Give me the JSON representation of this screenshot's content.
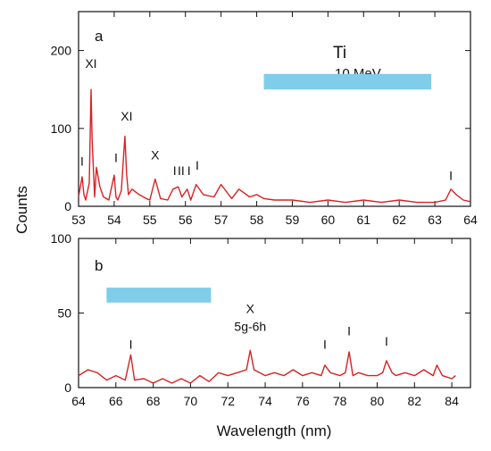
{
  "figure": {
    "ylabel": "Counts",
    "xlabel": "Wavelength (nm)"
  },
  "chart_data": [
    {
      "type": "line",
      "panel_label": "a",
      "title": "Ti",
      "subtitle": "10 MeV",
      "xlabel": "Wavelength (nm)",
      "ylabel": "Counts",
      "xlim": [
        53,
        64
      ],
      "ylim": [
        0,
        250
      ],
      "xticks": [
        53,
        54,
        55,
        56,
        57,
        58,
        59,
        60,
        61,
        62,
        63,
        64
      ],
      "yticks": [
        0,
        100,
        200
      ],
      "line_color": "#d62222",
      "band": {
        "x": [
          58.2,
          62.9
        ],
        "y": [
          150,
          170
        ],
        "color": "#7fcde8"
      },
      "series": [
        {
          "x": [
            53.0,
            53.1,
            53.15,
            53.2,
            53.3,
            53.35,
            53.38,
            53.45,
            53.5,
            53.6,
            53.7,
            53.85,
            54.0,
            54.05,
            54.1,
            54.2,
            54.3,
            54.35,
            54.4,
            54.5,
            54.7,
            54.9,
            55.0,
            55.15,
            55.3,
            55.5,
            55.65,
            55.8,
            55.9,
            56.05,
            56.15,
            56.3,
            56.5,
            56.8,
            57.0,
            57.3,
            57.5,
            57.8,
            58.0,
            58.2,
            58.5,
            59.0,
            59.5,
            60.0,
            60.5,
            61.0,
            61.5,
            62.0,
            62.5,
            63.0,
            63.3,
            63.45,
            63.6,
            63.8,
            64.0
          ],
          "y": [
            12,
            38,
            15,
            8,
            30,
            150,
            85,
            12,
            50,
            25,
            12,
            8,
            40,
            12,
            8,
            20,
            90,
            40,
            15,
            22,
            15,
            10,
            8,
            35,
            10,
            8,
            22,
            25,
            12,
            22,
            8,
            28,
            15,
            12,
            28,
            10,
            22,
            12,
            15,
            10,
            8,
            8,
            5,
            8,
            5,
            8,
            5,
            8,
            5,
            5,
            8,
            22,
            15,
            8,
            6
          ]
        }
      ],
      "annotations": [
        {
          "text": "XI",
          "x": 53.35,
          "y": 178
        },
        {
          "text": "XI",
          "x": 54.35,
          "y": 110
        },
        {
          "text": "X",
          "x": 55.15,
          "y": 60
        },
        {
          "text": "I",
          "x": 53.1,
          "y": 52
        },
        {
          "text": "I",
          "x": 54.05,
          "y": 57
        },
        {
          "text": "I",
          "x": 55.7,
          "y": 40
        },
        {
          "text": "II",
          "x": 55.88,
          "y": 40
        },
        {
          "text": "I",
          "x": 56.1,
          "y": 40
        },
        {
          "text": "I",
          "x": 56.33,
          "y": 47
        },
        {
          "text": "I",
          "x": 63.45,
          "y": 34
        }
      ]
    },
    {
      "type": "line",
      "panel_label": "b",
      "xlabel": "Wavelength (nm)",
      "ylabel": "Counts",
      "xlim": [
        64,
        85
      ],
      "ylim": [
        0,
        100
      ],
      "xticks": [
        64,
        66,
        68,
        70,
        72,
        74,
        76,
        78,
        80,
        82,
        84
      ],
      "yticks": [
        0,
        50,
        100
      ],
      "line_color": "#d62222",
      "band": {
        "x": [
          65.5,
          71.1
        ],
        "y": [
          57,
          67
        ],
        "color": "#7fcde8"
      },
      "series": [
        {
          "x": [
            64.0,
            64.5,
            65.0,
            65.5,
            66.0,
            66.5,
            66.8,
            67.0,
            67.5,
            68.0,
            68.5,
            69.0,
            69.5,
            70.0,
            70.5,
            71.0,
            71.5,
            72.0,
            72.5,
            73.0,
            73.2,
            73.4,
            73.7,
            74.0,
            74.5,
            75.0,
            75.5,
            76.0,
            76.5,
            77.0,
            77.2,
            77.5,
            78.0,
            78.3,
            78.5,
            78.7,
            79.0,
            79.5,
            80.0,
            80.3,
            80.5,
            80.8,
            81.0,
            81.5,
            82.0,
            82.5,
            83.0,
            83.2,
            83.5,
            84.0,
            84.2
          ],
          "y": [
            8,
            12,
            10,
            5,
            8,
            5,
            22,
            5,
            6,
            3,
            6,
            3,
            6,
            3,
            8,
            4,
            10,
            8,
            10,
            12,
            25,
            12,
            10,
            8,
            10,
            8,
            12,
            8,
            10,
            8,
            15,
            10,
            8,
            10,
            24,
            8,
            10,
            8,
            8,
            10,
            18,
            10,
            8,
            10,
            8,
            12,
            8,
            15,
            8,
            6,
            8
          ]
        }
      ],
      "annotations": [
        {
          "text": "X",
          "x": 73.2,
          "y": 50
        },
        {
          "text": "5g-6h",
          "x": 73.2,
          "y": 38
        },
        {
          "text": "I",
          "x": 66.8,
          "y": 26
        },
        {
          "text": "I",
          "x": 77.2,
          "y": 26
        },
        {
          "text": "I",
          "x": 78.5,
          "y": 35
        },
        {
          "text": "I",
          "x": 80.5,
          "y": 28
        }
      ]
    }
  ]
}
